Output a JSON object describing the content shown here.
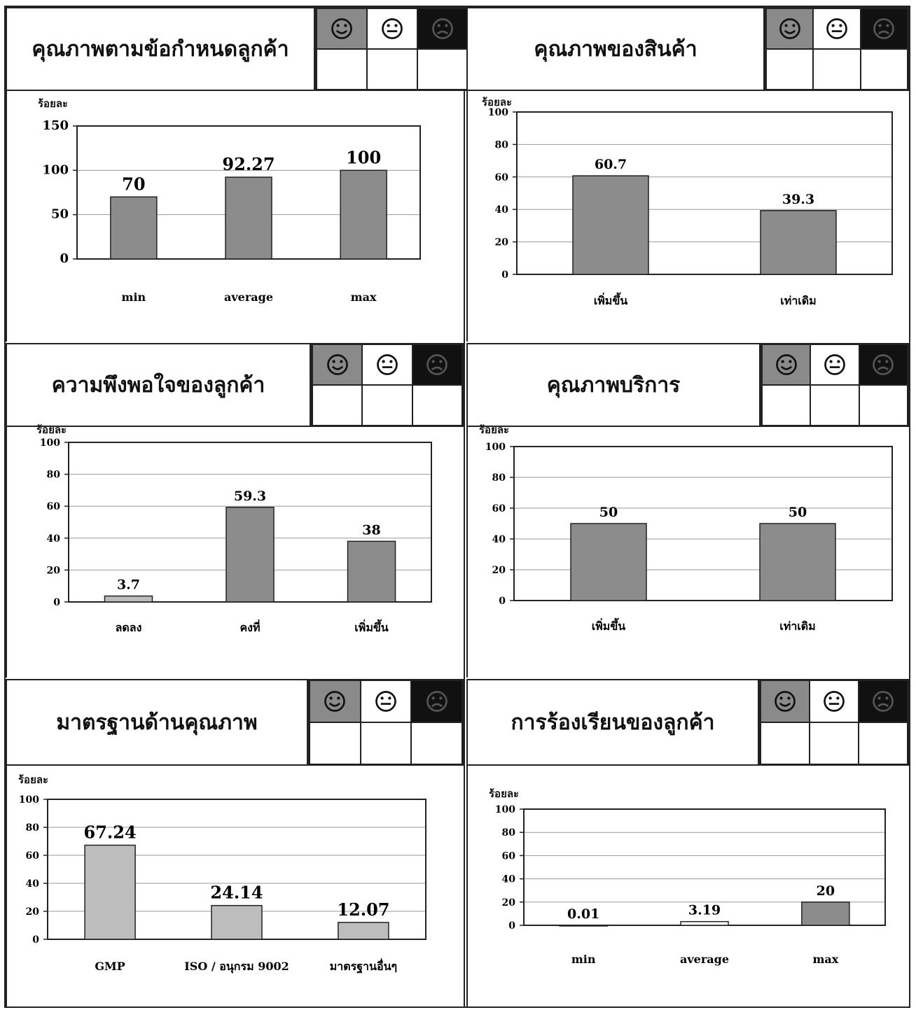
{
  "panels": [
    {
      "title": "คุณภาพตามข้อกำหนดลูกค้า",
      "ylabel": "ร้อยละ",
      "chart_data": {
        "type": "bar",
        "categories": [
          "min",
          "average",
          "max"
        ],
        "values": [
          70,
          92.27,
          100
        ],
        "value_labels": [
          "70",
          "92.27",
          "100"
        ],
        "ylim": [
          0,
          150
        ],
        "yticks": [
          0,
          50,
          100,
          150
        ],
        "grid": true
      }
    },
    {
      "title": "คุณภาพของสินค้า",
      "ylabel": "ร้อยละ",
      "chart_data": {
        "type": "bar",
        "categories": [
          "เพิ่มขึ้น",
          "เท่าเดิม"
        ],
        "values": [
          60.7,
          39.3
        ],
        "value_labels": [
          "60.7",
          "39.3"
        ],
        "ylim": [
          0,
          100
        ],
        "yticks": [
          0,
          20,
          40,
          60,
          80,
          100
        ],
        "grid": true
      }
    },
    {
      "title": "ความพึงพอใจของลูกค้า",
      "ylabel": "ร้อยละ",
      "chart_data": {
        "type": "bar",
        "categories": [
          "ลดลง",
          "คงที่",
          "เพิ่มขึ้น"
        ],
        "values": [
          3.7,
          59.3,
          38
        ],
        "value_labels": [
          "3.7",
          "59.3",
          "38"
        ],
        "ylim": [
          0,
          100
        ],
        "yticks": [
          0,
          20,
          40,
          60,
          80,
          100
        ],
        "grid": true
      }
    },
    {
      "title": "คุณภาพบริการ",
      "ylabel": "ร้อยละ",
      "chart_data": {
        "type": "bar",
        "categories": [
          "เพิ่มขึ้น",
          "เท่าเดิม"
        ],
        "values": [
          50,
          50
        ],
        "value_labels": [
          "50",
          "50"
        ],
        "ylim": [
          0,
          100
        ],
        "yticks": [
          0,
          20,
          40,
          60,
          80,
          100
        ],
        "grid": true
      }
    },
    {
      "title": "มาตรฐานด้านคุณภาพ",
      "ylabel": "ร้อยละ",
      "chart_data": {
        "type": "bar",
        "categories": [
          "GMP",
          "ISO / อนุกรม 9002",
          "มาตรฐานอื่นๆ"
        ],
        "values": [
          67.24,
          24.14,
          12.07
        ],
        "value_labels": [
          "67.24",
          "24.14",
          "12.07"
        ],
        "ylim": [
          0,
          100
        ],
        "yticks": [
          0,
          20,
          40,
          60,
          80,
          100
        ],
        "grid": true
      }
    },
    {
      "title": "การร้องเรียนของลูกค้า",
      "ylabel": "ร้อยละ",
      "chart_data": {
        "type": "bar",
        "categories": [
          "min",
          "average",
          "max"
        ],
        "values": [
          0.01,
          3.19,
          20
        ],
        "value_labels": [
          "0.01",
          "3.19",
          "20"
        ],
        "ylim": [
          0,
          100
        ],
        "yticks": [
          0,
          20,
          40,
          60,
          80,
          100
        ],
        "grid": true
      }
    }
  ],
  "faces": [
    "happy-face-icon",
    "neutral-face-icon",
    "sad-face-icon"
  ],
  "colors": {
    "bar": "#8c8c8c",
    "bar_light": "#bdbdbd",
    "grid": "#9a9a9a",
    "axis": "#222222"
  }
}
